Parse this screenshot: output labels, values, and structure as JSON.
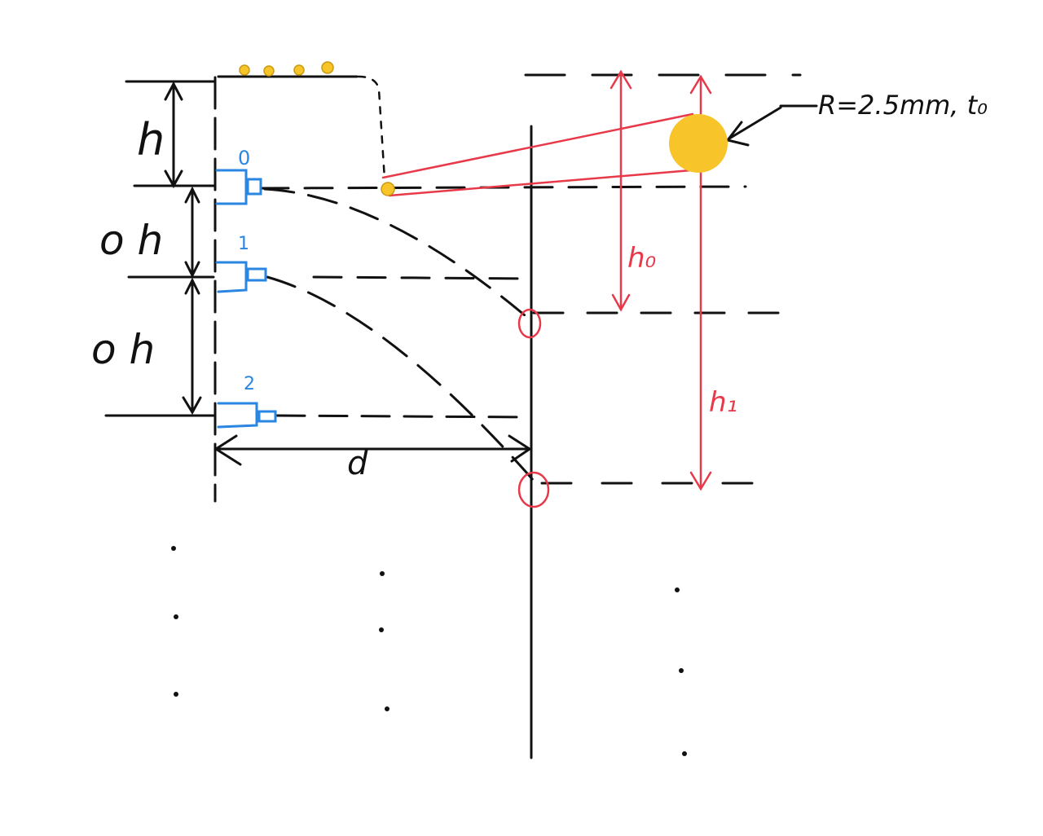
{
  "colors": {
    "ink": "#111111",
    "red": "#e8394a",
    "blue": "#2a86e0",
    "yellow": "#f7c52a"
  },
  "labels": {
    "h": "h",
    "oh_upper": "o h",
    "oh_lower": "o h",
    "d": "d",
    "h0": "h₀",
    "h1": "h₁",
    "radius_note": "R=2.5mm, t₀"
  },
  "cameras": [
    {
      "label": "0"
    },
    {
      "label": "1"
    },
    {
      "label": "2"
    }
  ],
  "icons": {
    "camera": "camera-icon",
    "ball": "ball-icon",
    "ellipsis": "vertical-ellipsis-icon"
  }
}
